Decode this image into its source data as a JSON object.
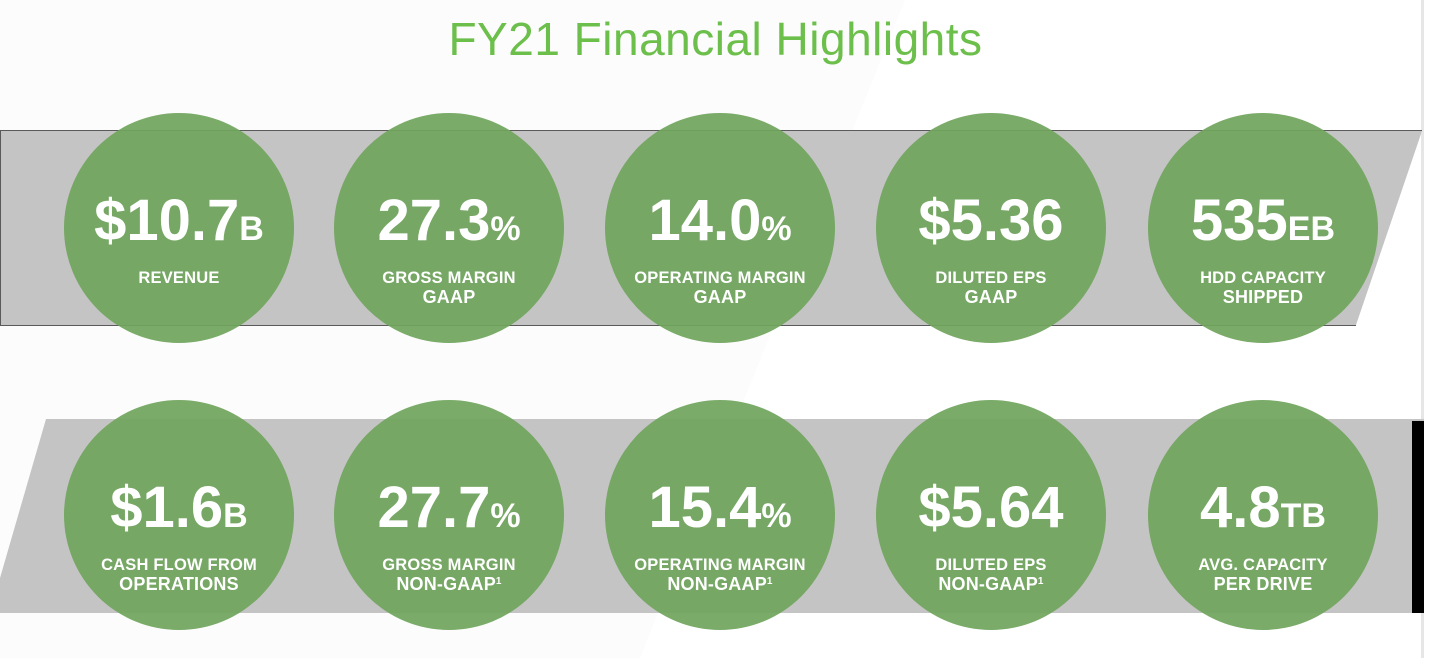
{
  "title": "FY21 Financial Highlights",
  "colors": {
    "title": "#6cbf4b",
    "circle": "#70a55c",
    "band": "#c4c4c4",
    "text": "#ffffff"
  },
  "rows": [
    [
      {
        "value": "$10.7",
        "unit": "B",
        "label_line1": "REVENUE",
        "label_line2": "",
        "footnote": ""
      },
      {
        "value": "27.3",
        "unit": "%",
        "label_line1": "GROSS MARGIN",
        "label_line2": "GAAP",
        "footnote": ""
      },
      {
        "value": "14.0",
        "unit": "%",
        "label_line1": "OPERATING MARGIN",
        "label_line2": "GAAP",
        "footnote": ""
      },
      {
        "value": "$5.36",
        "unit": "",
        "label_line1": "DILUTED EPS",
        "label_line2": "GAAP",
        "footnote": ""
      },
      {
        "value": "535",
        "unit": "EB",
        "label_line1": "HDD CAPACITY",
        "label_line2": "SHIPPED",
        "footnote": ""
      }
    ],
    [
      {
        "value": "$1.6",
        "unit": "B",
        "label_line1": "CASH FLOW FROM",
        "label_line2": "OPERATIONS",
        "footnote": ""
      },
      {
        "value": "27.7",
        "unit": "%",
        "label_line1": "GROSS MARGIN",
        "label_line2": "NON-GAAP",
        "footnote": "1"
      },
      {
        "value": "15.4",
        "unit": "%",
        "label_line1": "OPERATING MARGIN",
        "label_line2": "NON-GAAP",
        "footnote": "1"
      },
      {
        "value": "$5.64",
        "unit": "",
        "label_line1": "DILUTED EPS",
        "label_line2": "NON-GAAP",
        "footnote": "1"
      },
      {
        "value": "4.8",
        "unit": "TB",
        "label_line1": "AVG. CAPACITY",
        "label_line2": "PER DRIVE",
        "footnote": ""
      }
    ]
  ]
}
